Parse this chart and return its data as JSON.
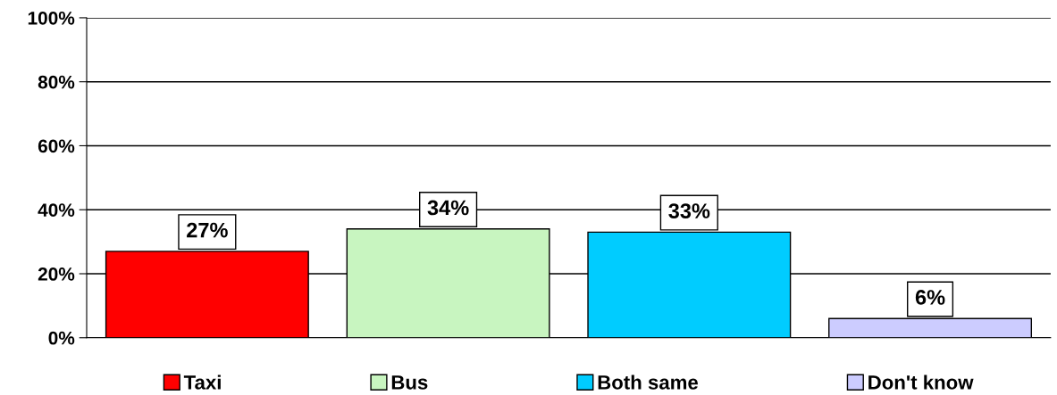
{
  "chart_data": {
    "type": "bar",
    "categories": [
      null,
      null,
      null,
      null
    ],
    "series": [
      {
        "name": "Taxi",
        "color": "#ff0000",
        "values": [
          27,
          null,
          null,
          null
        ],
        "value_labels": [
          "27%",
          null,
          null,
          null
        ]
      },
      {
        "name": "Bus",
        "color": "#c8f5c0",
        "values": [
          null,
          34,
          null,
          null
        ],
        "value_labels": [
          null,
          "34%",
          null,
          null
        ]
      },
      {
        "name": "Both same",
        "color": "#00ccff",
        "values": [
          null,
          null,
          33,
          null
        ],
        "value_labels": [
          null,
          null,
          "33%",
          null
        ]
      },
      {
        "name": "Don't know",
        "color": "#ccccff",
        "values": [
          null,
          null,
          null,
          6
        ],
        "value_labels": [
          null,
          null,
          null,
          "6%"
        ]
      }
    ],
    "ylim": [
      0,
      100
    ],
    "yticks": [
      {
        "value": 0,
        "label": "0%"
      },
      {
        "value": 20,
        "label": "20%"
      },
      {
        "value": 40,
        "label": "40%"
      },
      {
        "value": 60,
        "label": "60%"
      },
      {
        "value": 80,
        "label": "80%"
      },
      {
        "value": 100,
        "label": "100%"
      }
    ],
    "grid": "y",
    "legend": "bottom"
  }
}
